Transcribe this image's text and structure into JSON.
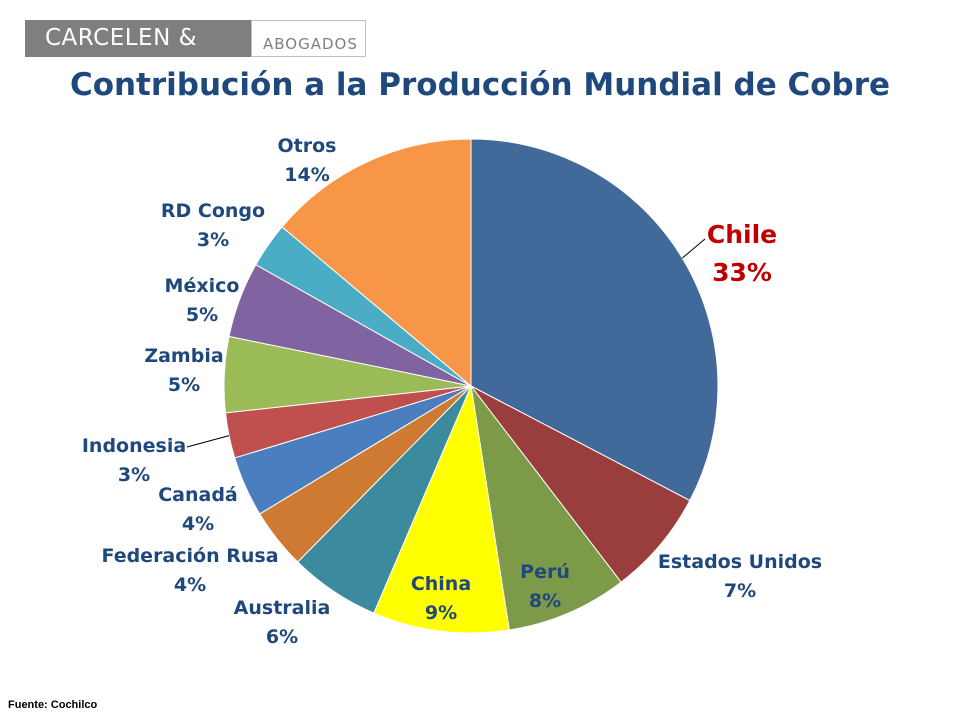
{
  "logo": {
    "name": "CARCELEN & CIA.",
    "subtitle": "ABOGADOS"
  },
  "source": "Fuente: Cochilco",
  "chart_data": {
    "type": "pie",
    "title": "Contribución a la Producción Mundial de Cobre",
    "slices": [
      {
        "label": "Chile",
        "value": 33,
        "value_label": "33%",
        "color": "#41699a"
      },
      {
        "label": "Estados Unidos",
        "value": 7,
        "value_label": "7%",
        "color": "#9a3e3d"
      },
      {
        "label": "Perú",
        "value": 8,
        "value_label": "8%",
        "color": "#7c9a47"
      },
      {
        "label": "China",
        "value": 9,
        "value_label": "9%",
        "color": "#ffff00"
      },
      {
        "label": "Australia",
        "value": 6,
        "value_label": "6%",
        "color": "#3c8a9e"
      },
      {
        "label": "Federación Rusa",
        "value": 4,
        "value_label": "4%",
        "color": "#cf7a33"
      },
      {
        "label": "Canadá",
        "value": 4,
        "value_label": "4%",
        "color": "#4a7ebf"
      },
      {
        "label": "Indonesia",
        "value": 3,
        "value_label": "3%",
        "color": "#c0504d"
      },
      {
        "label": "Zambia",
        "value": 5,
        "value_label": "5%",
        "color": "#9bbb59"
      },
      {
        "label": "México",
        "value": 5,
        "value_label": "5%",
        "color": "#8064a2"
      },
      {
        "label": "RD Congo",
        "value": 3,
        "value_label": "3%",
        "color": "#4bacc6"
      },
      {
        "label": "Otros",
        "value": 14,
        "value_label": "14%",
        "color": "#f79646"
      }
    ],
    "label_colors": {
      "default": "#1f497d",
      "highlight": "#c00000"
    },
    "highlight": "Chile"
  }
}
